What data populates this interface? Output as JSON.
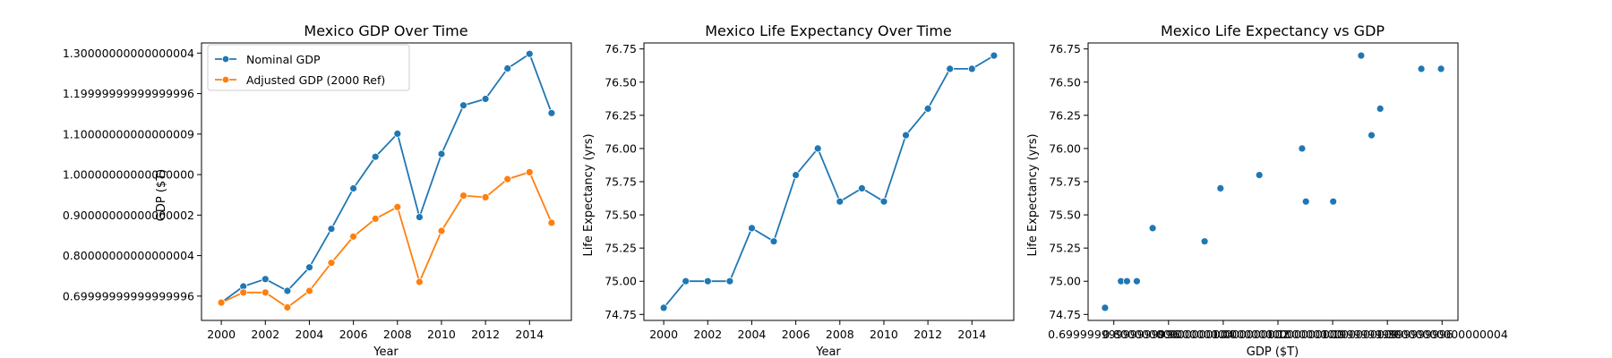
{
  "chart_data": [
    {
      "type": "line",
      "title": "Mexico GDP Over Time",
      "xlabel": "Year",
      "ylabel": "GDP ($T)",
      "xlim": [
        1999.1,
        2015.9
      ],
      "ylim": [
        0.64,
        1.325
      ],
      "xticks": [
        2000,
        2002,
        2004,
        2006,
        2008,
        2010,
        2012,
        2014
      ],
      "yticks": [
        0.7,
        0.8,
        0.9,
        1.0,
        1.1,
        1.2,
        1.3
      ],
      "x": [
        2000,
        2001,
        2002,
        2003,
        2004,
        2005,
        2006,
        2007,
        2008,
        2009,
        2010,
        2011,
        2012,
        2013,
        2014,
        2015
      ],
      "series": [
        {
          "name": "Nominal GDP",
          "color": "#1f77b4",
          "values": [
            0.684,
            0.724,
            0.742,
            0.713,
            0.771,
            0.866,
            0.966,
            1.044,
            1.101,
            0.895,
            1.051,
            1.171,
            1.187,
            1.262,
            1.298,
            1.152
          ]
        },
        {
          "name": "Adjusted GDP (2000 Ref)",
          "color": "#ff7f0e",
          "values": [
            0.684,
            0.709,
            0.709,
            0.672,
            0.713,
            0.782,
            0.847,
            0.891,
            0.92,
            0.735,
            0.861,
            0.948,
            0.944,
            0.989,
            1.006,
            0.881
          ]
        }
      ],
      "legend": "top-left",
      "grid": false
    },
    {
      "type": "line",
      "title": "Mexico Life Expectancy Over Time",
      "xlabel": "Year",
      "ylabel": "Life Expectancy (yrs)",
      "xlim": [
        1999.1,
        2015.9
      ],
      "ylim": [
        74.705,
        76.795
      ],
      "xticks": [
        2000,
        2002,
        2004,
        2006,
        2008,
        2010,
        2012,
        2014
      ],
      "yticks": [
        74.75,
        75.0,
        75.25,
        75.5,
        75.75,
        76.0,
        76.25,
        76.5,
        76.75
      ],
      "x": [
        2000,
        2001,
        2002,
        2003,
        2004,
        2005,
        2006,
        2007,
        2008,
        2009,
        2010,
        2011,
        2012,
        2013,
        2014,
        2015
      ],
      "series": [
        {
          "color": "#1f77b4",
          "values": [
            74.8,
            75.0,
            75.0,
            75.0,
            75.4,
            75.3,
            75.8,
            76.0,
            75.6,
            75.7,
            75.6,
            76.1,
            76.3,
            76.6,
            76.6,
            76.7
          ]
        }
      ],
      "grid": false
    },
    {
      "type": "scatter",
      "title": "Mexico Life Expectancy vs GDP",
      "xlabel": "GDP ($T)",
      "ylabel": "Life Expectancy (yrs)",
      "xlim": [
        0.653,
        1.329
      ],
      "ylim": [
        74.705,
        76.795
      ],
      "xticks": [
        0.7,
        0.8,
        0.9,
        1.0,
        1.1,
        1.2,
        1.3
      ],
      "yticks": [
        74.75,
        75.0,
        75.25,
        75.5,
        75.75,
        76.0,
        76.25,
        76.5,
        76.75
      ],
      "series": [
        {
          "color": "#1f77b4",
          "x": [
            0.684,
            0.713,
            0.724,
            0.742,
            0.771,
            0.866,
            0.895,
            0.966,
            1.044,
            1.051,
            1.101,
            1.152,
            1.171,
            1.187,
            1.262,
            1.298
          ],
          "y": [
            74.8,
            75.0,
            75.0,
            75.0,
            75.4,
            75.3,
            75.7,
            75.8,
            76.0,
            75.6,
            75.6,
            76.7,
            76.1,
            76.3,
            76.6,
            76.6
          ]
        }
      ],
      "grid": false
    }
  ]
}
